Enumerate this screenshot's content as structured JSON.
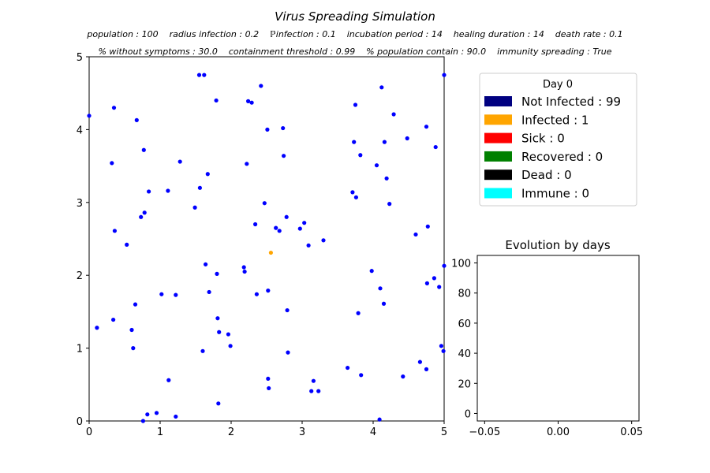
{
  "figure": {
    "title": "Virus Spreading Simulation",
    "params_line1": "population : 100    radius infection : 0.2    ℙinfection : 0.1    incubation period : 14    healing duration : 14    death rate : 0.1",
    "params_line2": "% without symptoms : 30.0    containment threshold : 0.99    % population contain : 90.0    immunity spreading : True"
  },
  "legend": {
    "title": "Day 0",
    "entries": [
      {
        "label": "Not Infected : 99",
        "color": "#000080"
      },
      {
        "label": "Infected : 1",
        "color": "#ffa500"
      },
      {
        "label": "Sick : 0",
        "color": "#ff0000"
      },
      {
        "label": "Recovered : 0",
        "color": "#008000"
      },
      {
        "label": "Dead : 0",
        "color": "#000000"
      },
      {
        "label": "Immune : 0",
        "color": "#00ffff"
      }
    ]
  },
  "chart_data": [
    {
      "type": "scatter",
      "title": "",
      "xlabel": "",
      "ylabel": "",
      "xlim": [
        0,
        5
      ],
      "ylim": [
        0,
        5
      ],
      "xticks": [
        "0",
        "1",
        "2",
        "3",
        "4",
        "5"
      ],
      "yticks": [
        "0",
        "1",
        "2",
        "3",
        "4",
        "5"
      ],
      "grid": false,
      "series": [
        {
          "color": "#0000ff",
          "points": [
            [
              0.0,
              4.19
            ],
            [
              0.11,
              1.28
            ],
            [
              0.32,
              3.54
            ],
            [
              0.34,
              1.39
            ],
            [
              0.35,
              4.3
            ],
            [
              0.36,
              2.61
            ],
            [
              0.53,
              2.42
            ],
            [
              0.6,
              1.25
            ],
            [
              0.62,
              1.0
            ],
            [
              0.65,
              1.6
            ],
            [
              0.67,
              4.13
            ],
            [
              0.73,
              2.8
            ],
            [
              0.76,
              0.0
            ],
            [
              0.77,
              3.72
            ],
            [
              0.78,
              2.86
            ],
            [
              0.82,
              0.09
            ],
            [
              0.84,
              3.15
            ],
            [
              0.95,
              0.11
            ],
            [
              1.02,
              1.74
            ],
            [
              1.11,
              3.16
            ],
            [
              1.12,
              0.56
            ],
            [
              1.22,
              1.73
            ],
            [
              1.22,
              0.06
            ],
            [
              1.28,
              3.56
            ],
            [
              1.49,
              2.93
            ],
            [
              1.55,
              4.75
            ],
            [
              1.56,
              3.2
            ],
            [
              1.6,
              0.96
            ],
            [
              1.62,
              4.75
            ],
            [
              1.64,
              2.15
            ],
            [
              1.67,
              3.39
            ],
            [
              1.69,
              1.77
            ],
            [
              1.79,
              4.4
            ],
            [
              1.8,
              2.02
            ],
            [
              1.81,
              1.41
            ],
            [
              1.82,
              0.24
            ],
            [
              1.83,
              1.22
            ],
            [
              1.96,
              1.19
            ],
            [
              1.99,
              1.03
            ],
            [
              2.18,
              2.11
            ],
            [
              2.19,
              2.05
            ],
            [
              2.22,
              3.53
            ],
            [
              2.24,
              4.39
            ],
            [
              2.29,
              4.37
            ],
            [
              2.34,
              2.7
            ],
            [
              2.36,
              1.74
            ],
            [
              2.42,
              4.6
            ],
            [
              2.47,
              2.99
            ],
            [
              2.51,
              4.0
            ],
            [
              2.52,
              1.79
            ],
            [
              2.52,
              0.58
            ],
            [
              2.53,
              0.45
            ],
            [
              2.63,
              2.65
            ],
            [
              2.68,
              2.61
            ],
            [
              2.73,
              4.02
            ],
            [
              2.74,
              3.64
            ],
            [
              2.78,
              2.8
            ],
            [
              2.79,
              1.52
            ],
            [
              2.8,
              0.94
            ],
            [
              2.97,
              2.64
            ],
            [
              3.03,
              2.72
            ],
            [
              3.09,
              2.41
            ],
            [
              3.13,
              0.41
            ],
            [
              3.16,
              0.55
            ],
            [
              3.23,
              0.41
            ],
            [
              3.3,
              2.48
            ],
            [
              3.64,
              0.73
            ],
            [
              3.71,
              3.14
            ],
            [
              3.73,
              3.83
            ],
            [
              3.75,
              4.34
            ],
            [
              3.76,
              3.07
            ],
            [
              3.79,
              1.48
            ],
            [
              3.82,
              3.65
            ],
            [
              3.83,
              0.63
            ],
            [
              3.98,
              2.06
            ],
            [
              4.05,
              3.51
            ],
            [
              4.09,
              0.02
            ],
            [
              4.1,
              1.82
            ],
            [
              4.12,
              4.58
            ],
            [
              4.15,
              1.61
            ],
            [
              4.16,
              3.83
            ],
            [
              4.19,
              3.33
            ],
            [
              4.23,
              2.98
            ],
            [
              4.29,
              4.21
            ],
            [
              4.42,
              0.61
            ],
            [
              4.48,
              3.88
            ],
            [
              4.6,
              2.56
            ],
            [
              4.66,
              0.81
            ],
            [
              4.75,
              4.04
            ],
            [
              4.75,
              0.71
            ],
            [
              4.76,
              1.89
            ],
            [
              4.77,
              2.67
            ],
            [
              4.86,
              1.96
            ],
            [
              4.88,
              3.76
            ],
            [
              4.93,
              1.84
            ],
            [
              4.96,
              1.03
            ],
            [
              4.99,
              0.96
            ],
            [
              5.0,
              4.75
            ],
            [
              5.0,
              2.13
            ]
          ]
        },
        {
          "color": "#ffa500",
          "points": [
            [
              2.56,
              2.31
            ]
          ]
        }
      ]
    },
    {
      "type": "line",
      "title": "Evolution by days",
      "xlabel": "",
      "ylabel": "",
      "xlim": [
        -0.055,
        0.055
      ],
      "ylim": [
        -5,
        105
      ],
      "xticks": [
        "−0.05",
        "0.00",
        "0.05"
      ],
      "yticks": [
        "0",
        "20",
        "40",
        "60",
        "80",
        "100"
      ],
      "grid": false,
      "series": []
    }
  ]
}
